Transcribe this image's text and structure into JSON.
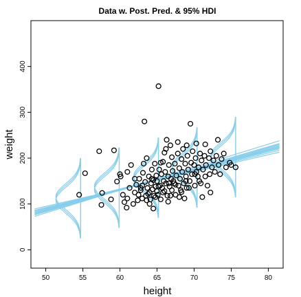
{
  "chart_data": {
    "type": "scatter",
    "title": "Data w. Post. Pred. & 95% HDI",
    "xlabel": "height",
    "ylabel": "weight",
    "xlim": [
      48,
      82
    ],
    "ylim": [
      -40,
      500
    ],
    "xticks": [
      "50",
      "55",
      "60",
      "65",
      "70",
      "75",
      "80"
    ],
    "yticks": [
      "0",
      "100",
      "200",
      "300",
      "400"
    ],
    "colors": {
      "points": "#000000",
      "credible_lines": "#87ceeb",
      "frame": "#000000"
    },
    "credible_lines": [
      {
        "x": [
          48.5,
          81.5
        ],
        "y": [
          73,
          238
        ]
      },
      {
        "x": [
          48.5,
          81.5
        ],
        "y": [
          76,
          232
        ]
      },
      {
        "x": [
          48.5,
          81.5
        ],
        "y": [
          79,
          228
        ]
      },
      {
        "x": [
          48.5,
          81.5
        ],
        "y": [
          82,
          224
        ]
      },
      {
        "x": [
          48.5,
          81.5
        ],
        "y": [
          84,
          220
        ]
      },
      {
        "x": [
          48.5,
          81.5
        ],
        "y": [
          86,
          217
        ]
      },
      {
        "x": [
          48.5,
          81.5
        ],
        "y": [
          89,
          213
        ]
      },
      {
        "x": [
          48.5,
          81.5
        ],
        "y": [
          80,
          230
        ]
      },
      {
        "x": [
          48.5,
          81.5
        ],
        "y": [
          78,
          226
        ]
      },
      {
        "x": [
          48.5,
          81.5
        ],
        "y": [
          85,
          222
        ]
      }
    ],
    "predictive_distributions": [
      {
        "x": 54.7,
        "mean": 112,
        "sd": 28,
        "ymin": 25,
        "ymax": 200
      },
      {
        "x": 59.9,
        "mean": 135,
        "sd": 28,
        "ymin": 48,
        "ymax": 223
      },
      {
        "x": 65.2,
        "mean": 157,
        "sd": 28,
        "ymin": 70,
        "ymax": 245
      },
      {
        "x": 70.4,
        "mean": 179,
        "sd": 28,
        "ymin": 92,
        "ymax": 267
      },
      {
        "x": 75.6,
        "mean": 202,
        "sd": 28,
        "ymin": 115,
        "ymax": 290
      }
    ],
    "points": [
      [
        54.5,
        120
      ],
      [
        55.3,
        167
      ],
      [
        57.2,
        215
      ],
      [
        57.6,
        124
      ],
      [
        57.5,
        98
      ],
      [
        58.8,
        110
      ],
      [
        59.2,
        217
      ],
      [
        59.6,
        149
      ],
      [
        60.1,
        160
      ],
      [
        60.4,
        120
      ],
      [
        60.6,
        104
      ],
      [
        60.9,
        92
      ],
      [
        61.0,
        112
      ],
      [
        61.3,
        135
      ],
      [
        61.5,
        185
      ],
      [
        61.8,
        100
      ],
      [
        62.0,
        125
      ],
      [
        62.2,
        142
      ],
      [
        62.4,
        108
      ],
      [
        62.6,
        155
      ],
      [
        62.8,
        130
      ],
      [
        63.0,
        112
      ],
      [
        63.1,
        168
      ],
      [
        63.3,
        280
      ],
      [
        63.4,
        148
      ],
      [
        63.5,
        118
      ],
      [
        63.6,
        200
      ],
      [
        63.7,
        135
      ],
      [
        63.9,
        160
      ],
      [
        64.0,
        125
      ],
      [
        64.1,
        110
      ],
      [
        64.2,
        145
      ],
      [
        64.3,
        175
      ],
      [
        64.4,
        132
      ],
      [
        64.5,
        152
      ],
      [
        64.6,
        118
      ],
      [
        64.7,
        188
      ],
      [
        64.8,
        138
      ],
      [
        64.9,
        162
      ],
      [
        65.0,
        128
      ],
      [
        65.0,
        150
      ],
      [
        65.1,
        120
      ],
      [
        65.2,
        357
      ],
      [
        65.3,
        175
      ],
      [
        65.4,
        140
      ],
      [
        65.5,
        110
      ],
      [
        65.6,
        165
      ],
      [
        65.7,
        135
      ],
      [
        65.8,
        192
      ],
      [
        65.9,
        150
      ],
      [
        66.0,
        128
      ],
      [
        66.0,
        212
      ],
      [
        66.1,
        170
      ],
      [
        66.2,
        145
      ],
      [
        66.3,
        240
      ],
      [
        66.4,
        118
      ],
      [
        66.5,
        160
      ],
      [
        66.6,
        185
      ],
      [
        66.7,
        138
      ],
      [
        66.8,
        228
      ],
      [
        66.9,
        155
      ],
      [
        67.0,
        130
      ],
      [
        67.0,
        202
      ],
      [
        67.1,
        172
      ],
      [
        67.3,
        145
      ],
      [
        67.4,
        188
      ],
      [
        67.5,
        120
      ],
      [
        67.6,
        162
      ],
      [
        67.8,
        210
      ],
      [
        67.9,
        140
      ],
      [
        68.0,
        178
      ],
      [
        68.1,
        155
      ],
      [
        68.2,
        130
      ],
      [
        68.3,
        198
      ],
      [
        68.4,
        170
      ],
      [
        68.5,
        220
      ],
      [
        68.6,
        145
      ],
      [
        68.8,
        188
      ],
      [
        68.9,
        160
      ],
      [
        69.0,
        135
      ],
      [
        69.1,
        205
      ],
      [
        69.2,
        175
      ],
      [
        69.4,
        150
      ],
      [
        69.5,
        275
      ],
      [
        69.6,
        190
      ],
      [
        69.7,
        165
      ],
      [
        69.8,
        215
      ],
      [
        70.0,
        185
      ],
      [
        70.1,
        140
      ],
      [
        70.2,
        200
      ],
      [
        70.3,
        170
      ],
      [
        70.5,
        160
      ],
      [
        70.6,
        180
      ],
      [
        70.8,
        210
      ],
      [
        70.9,
        145
      ],
      [
        71.0,
        195
      ],
      [
        71.1,
        115
      ],
      [
        71.2,
        175
      ],
      [
        71.4,
        205
      ],
      [
        71.5,
        160
      ],
      [
        71.6,
        185
      ],
      [
        71.8,
        140
      ],
      [
        72.0,
        200
      ],
      [
        72.1,
        165
      ],
      [
        72.2,
        215
      ],
      [
        72.4,
        180
      ],
      [
        72.6,
        195
      ],
      [
        72.8,
        170
      ],
      [
        73.0,
        205
      ],
      [
        73.2,
        240
      ],
      [
        73.3,
        185
      ],
      [
        73.5,
        165
      ],
      [
        73.7,
        198
      ],
      [
        74.0,
        210
      ],
      [
        74.3,
        180
      ],
      [
        74.8,
        190
      ],
      [
        75.0,
        185
      ],
      [
        75.6,
        180
      ],
      [
        62.5,
        120
      ],
      [
        64.0,
        100
      ],
      [
        64.5,
        90
      ],
      [
        66.5,
        105
      ],
      [
        68.0,
        115
      ],
      [
        68.7,
        112
      ],
      [
        72.2,
        125
      ],
      [
        63.0,
        140
      ],
      [
        65.5,
        190
      ],
      [
        67.2,
        150
      ],
      [
        69.0,
        228
      ],
      [
        70.3,
        232
      ],
      [
        60.0,
        165
      ],
      [
        61.0,
        170
      ],
      [
        66.2,
        220
      ],
      [
        67.8,
        235
      ],
      [
        71.5,
        230
      ],
      [
        62.0,
        155
      ],
      [
        63.8,
        122
      ],
      [
        64.8,
        115
      ],
      [
        65.8,
        125
      ],
      [
        66.8,
        118
      ],
      [
        68.3,
        126
      ],
      [
        69.3,
        135
      ],
      [
        70.7,
        150
      ],
      [
        63.2,
        188
      ],
      [
        65.2,
        138
      ],
      [
        64.3,
        155
      ],
      [
        67.5,
        142
      ],
      [
        68.9,
        150
      ],
      [
        70.1,
        165
      ],
      [
        66.6,
        145
      ],
      [
        63.6,
        108
      ],
      [
        62.8,
        135
      ]
    ]
  }
}
